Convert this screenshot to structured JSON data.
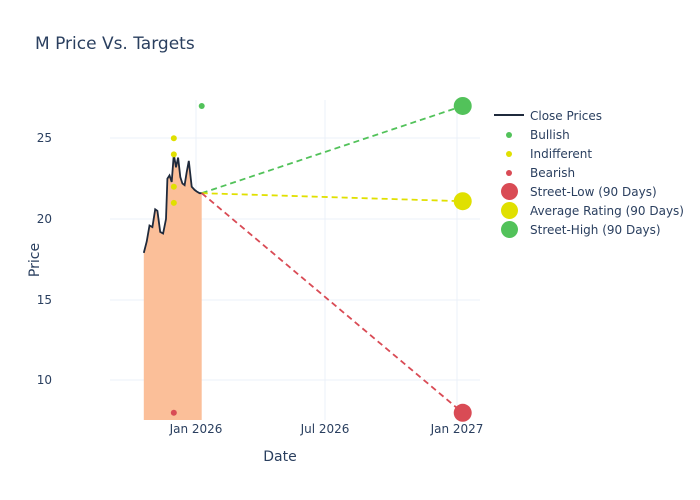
{
  "title": "M Price Vs. Targets",
  "axes": {
    "x_title": "Date",
    "y_title": "Price",
    "x_ticks": [
      "Jan 2026",
      "Jul 2026",
      "Jan 2027"
    ],
    "y_ticks": [
      "10",
      "15",
      "20",
      "25"
    ]
  },
  "legend": [
    {
      "label": "Close Prices",
      "type": "line",
      "color": "#1f2a3c"
    },
    {
      "label": "Bullish",
      "type": "small-dot",
      "color": "#52c25a"
    },
    {
      "label": "Indifferent",
      "type": "small-dot",
      "color": "#e0e000"
    },
    {
      "label": "Bearish",
      "type": "small-dot",
      "color": "#d94b55"
    },
    {
      "label": "Street-Low (90 Days)",
      "type": "big-dot",
      "color": "#d94b55"
    },
    {
      "label": "Average Rating (90 Days)",
      "type": "big-dot",
      "color": "#e0e000"
    },
    {
      "label": "Street-High (90 Days)",
      "type": "big-dot",
      "color": "#52c25a"
    }
  ],
  "chart_data": {
    "type": "line",
    "title": "M Price Vs. Targets",
    "xlabel": "Date",
    "ylabel": "Price",
    "ylim": [
      7.6,
      27.4
    ],
    "x_tick_labels": [
      "Jan 2026",
      "Jul 2026",
      "Jan 2027"
    ],
    "y_tick_labels": [
      10,
      15,
      20,
      25
    ],
    "legend_position": "right",
    "grid": true,
    "series": [
      {
        "name": "Close Prices",
        "type": "line-area",
        "color": "#1f2a3c",
        "fill_color": "#fbbf99",
        "x": [
          "2025-10-20",
          "2025-10-24",
          "2025-10-28",
          "2025-11-01",
          "2025-11-05",
          "2025-11-08",
          "2025-11-12",
          "2025-11-16",
          "2025-11-20",
          "2025-11-22",
          "2025-11-25",
          "2025-11-28",
          "2025-12-01",
          "2025-12-04",
          "2025-12-07",
          "2025-12-10",
          "2025-12-13",
          "2025-12-16",
          "2025-12-19",
          "2025-12-22",
          "2025-12-26",
          "2025-12-30",
          "2026-01-02",
          "2026-01-06",
          "2026-01-09"
        ],
        "values": [
          17.9,
          18.6,
          19.6,
          19.5,
          20.6,
          20.5,
          19.2,
          19.1,
          20.0,
          22.5,
          22.7,
          22.3,
          24.0,
          23.2,
          23.8,
          22.6,
          22.2,
          22.1,
          22.9,
          23.6,
          22.0,
          21.8,
          21.7,
          21.6,
          21.6
        ]
      },
      {
        "name": "Bullish",
        "type": "scatter",
        "color": "#52c25a",
        "points": [
          {
            "x": "2026-01-09",
            "y": 27
          }
        ]
      },
      {
        "name": "Indifferent",
        "type": "scatter",
        "color": "#e0e000",
        "points": [
          {
            "x": "2025-12-01",
            "y": 25
          },
          {
            "x": "2025-12-01",
            "y": 24
          },
          {
            "x": "2025-12-01",
            "y": 22
          },
          {
            "x": "2025-12-01",
            "y": 21
          }
        ]
      },
      {
        "name": "Bearish",
        "type": "scatter",
        "color": "#d94b55",
        "points": [
          {
            "x": "2025-12-01",
            "y": 8
          }
        ]
      },
      {
        "name": "Street-Low (90 Days)",
        "type": "scatter",
        "color": "#d94b55",
        "points": [
          {
            "x": "2027-01-09",
            "y": 8
          }
        ]
      },
      {
        "name": "Average Rating (90 Days)",
        "type": "scatter",
        "color": "#e0e000",
        "points": [
          {
            "x": "2027-01-09",
            "y": 21.1
          }
        ]
      },
      {
        "name": "Street-High (90 Days)",
        "type": "scatter",
        "color": "#52c25a",
        "points": [
          {
            "x": "2027-01-09",
            "y": 27
          }
        ]
      }
    ],
    "projections": [
      {
        "from": {
          "x": "2026-01-09",
          "y": 21.6
        },
        "to": {
          "x": "2027-01-09",
          "y": 27
        },
        "color": "#52c25a",
        "style": "dashed"
      },
      {
        "from": {
          "x": "2026-01-09",
          "y": 21.6
        },
        "to": {
          "x": "2027-01-09",
          "y": 21.1
        },
        "color": "#e0e000",
        "style": "dashed"
      },
      {
        "from": {
          "x": "2026-01-09",
          "y": 21.6
        },
        "to": {
          "x": "2027-01-09",
          "y": 8
        },
        "color": "#d94b55",
        "style": "dashed"
      }
    ]
  }
}
